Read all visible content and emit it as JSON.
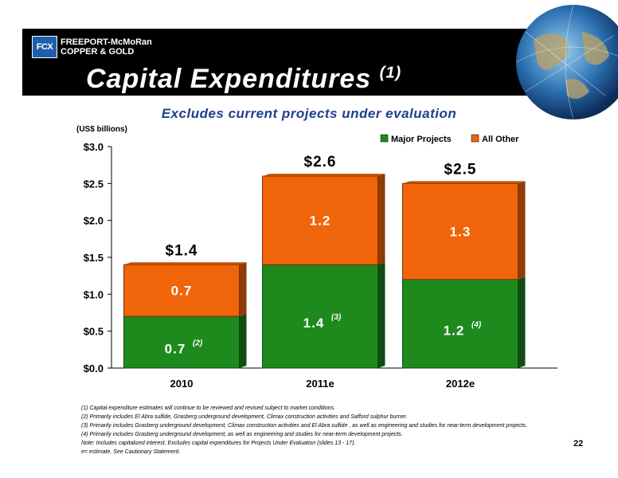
{
  "header": {
    "logo_mark": "FCX",
    "company_line1": "FREEPORT-McMoRan",
    "company_line2": "COPPER & GOLD",
    "title": "Capital Expenditures",
    "title_note": "(1)"
  },
  "subtitle": "Excludes current projects under evaluation",
  "unit_label": "(US$ billions)",
  "colors": {
    "major": "#1e8a1e",
    "other": "#f0640a",
    "banner": "#000000",
    "subtitle": "#1f3f8f"
  },
  "chart_data": {
    "type": "bar",
    "stacked": true,
    "categories": [
      "2010",
      "2011e",
      "2012e"
    ],
    "series": [
      {
        "name": "Major Projects",
        "values": [
          0.7,
          1.4,
          1.2
        ],
        "labels": [
          "0.7",
          "1.4",
          "1.2"
        ],
        "notes": [
          "(2)",
          "(3)",
          "(4)"
        ]
      },
      {
        "name": "All Other",
        "values": [
          0.7,
          1.2,
          1.3
        ],
        "labels": [
          "0.7",
          "1.2",
          "1.3"
        ]
      }
    ],
    "totals": [
      "$1.4",
      "$2.6",
      "$2.5"
    ],
    "ylim": [
      0,
      3
    ],
    "yticks": [
      "$0.0",
      "$0.5",
      "$1.0",
      "$1.5",
      "$2.0",
      "$2.5",
      "$3.0"
    ],
    "legend_position": "top-right"
  },
  "footnotes": [
    "(1)  Capital expenditure estimates will continue to be reviewed and revised subject to market conditions.",
    "(2)  Primarily includes El Abra sulfide, Grasberg underground development, Climax construction activities and Safford sulphur burner.",
    "(3)  Primarily includes Grasberg underground development, Climax construction activities and El Abra sulfide , as well as engineering and studies for near-term development projects.",
    "(4)  Primarily includes Grasberg underground development, as well as engineering and studies for near-term development projects.",
    "Note: Includes capitalized interest. Excludes capital expenditures for Projects Under Evaluation (slides 13 - 17).",
    " e= estimate. See Cautionary Statement."
  ],
  "page_number": "22"
}
